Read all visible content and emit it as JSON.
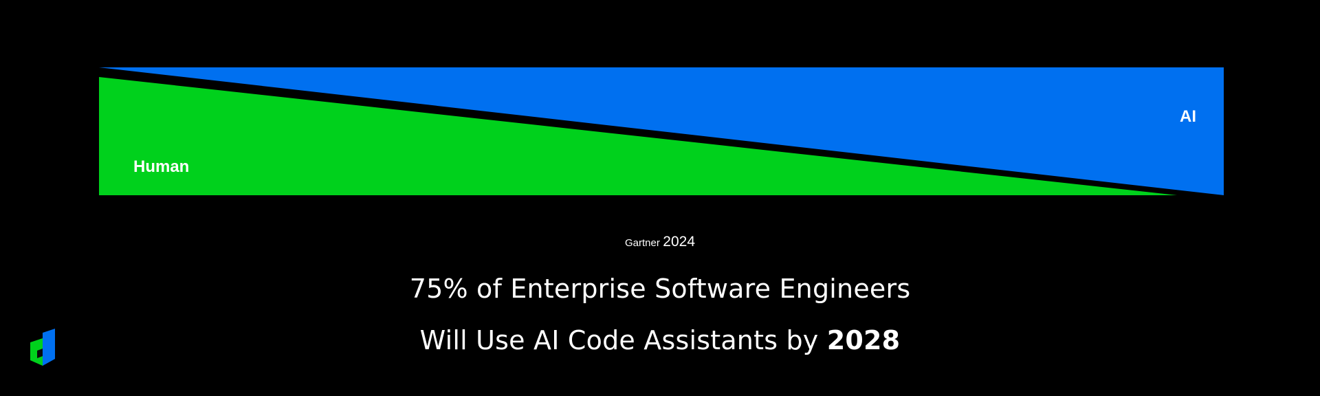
{
  "diagram": {
    "human_label": "Human",
    "ai_label": "AI",
    "human_color": "#00d11c",
    "ai_color": "#0070f0",
    "separator_color": "#000000"
  },
  "source": {
    "name": "Gartner",
    "year": "2024"
  },
  "headline": {
    "line1": "75% of Enterprise Software Engineers",
    "line2_prefix": "Will Use AI Code Assistants by ",
    "line2_year": "2028"
  },
  "logo": {
    "icon": "cube-logo-icon",
    "colors": [
      "#00d11c",
      "#0070f0"
    ]
  }
}
